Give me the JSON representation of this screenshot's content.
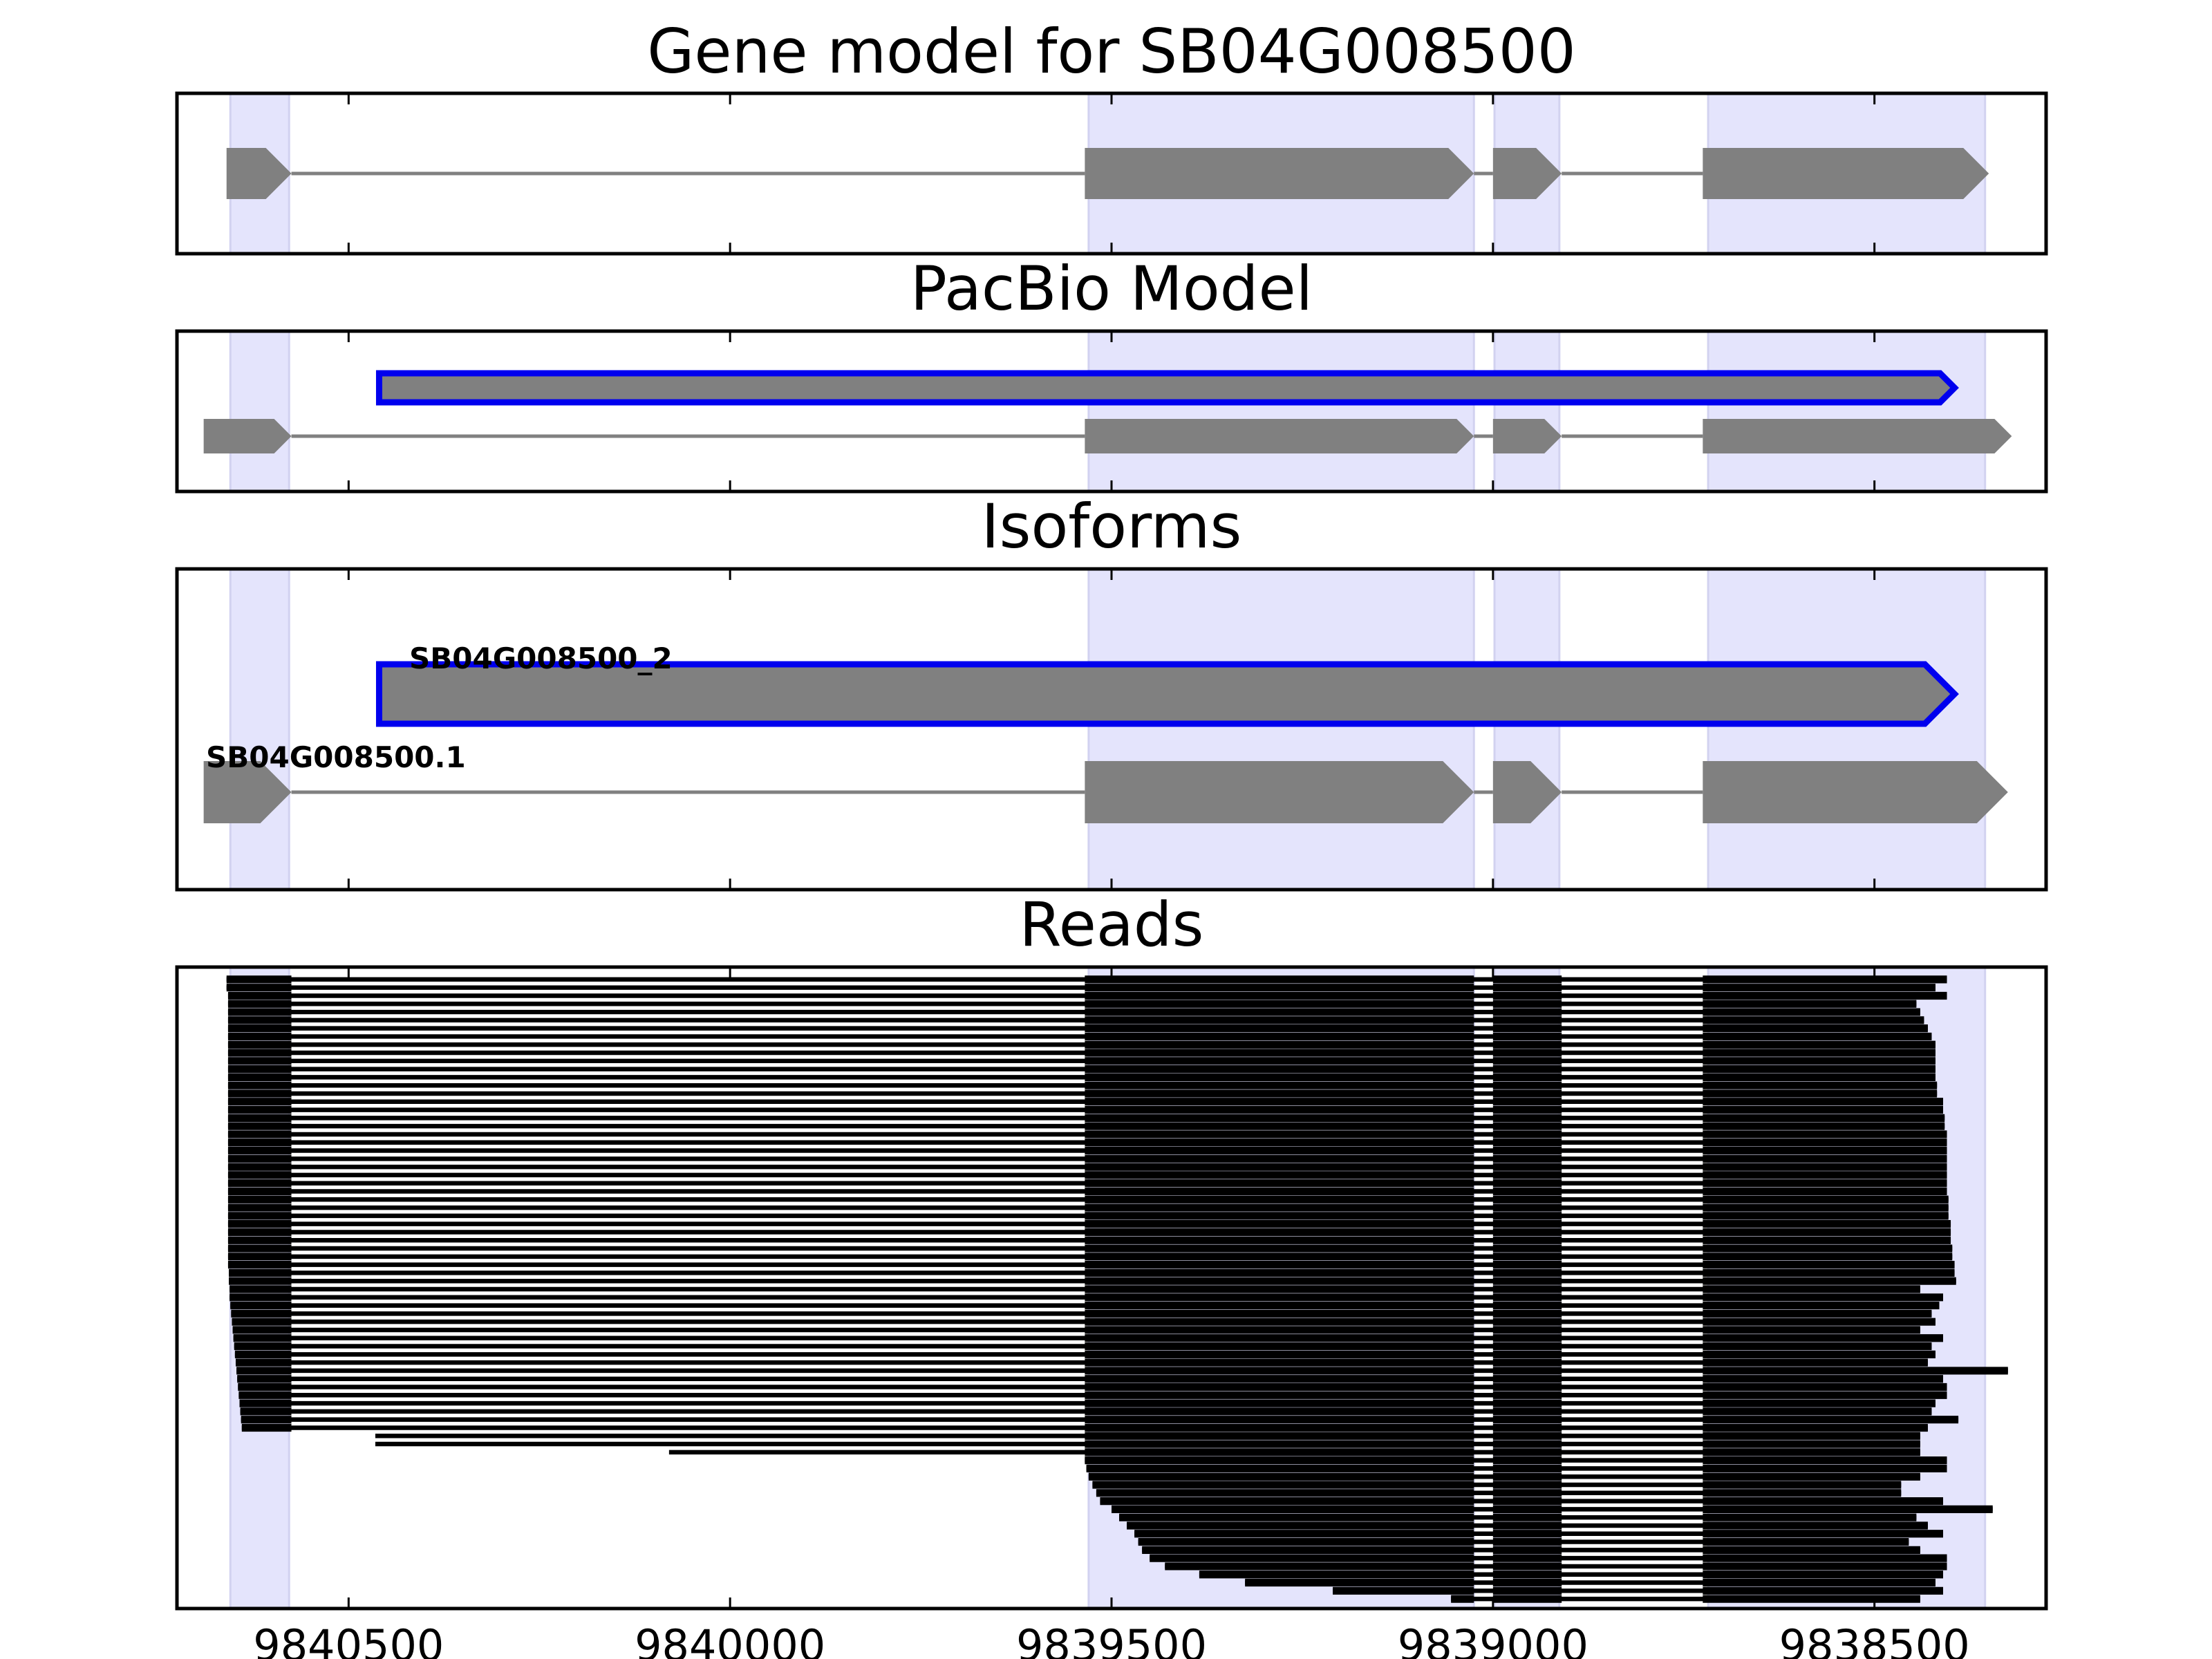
{
  "chart_data": {
    "type": "gene-track",
    "x_axis": {
      "xlim": [
        9840725,
        9838275
      ],
      "reversed": true,
      "ticks": [
        9840500,
        9840000,
        9839500,
        9839000,
        9838500
      ],
      "tick_labels": [
        "9840500",
        "9840000",
        "9839500",
        "9839000",
        "9838500"
      ]
    },
    "colors": {
      "exon_fill": "#808080",
      "intron_line": "#808080",
      "highlight_band": "#e4e4fc",
      "highlight_edge": "#d2d2f0",
      "selected_outline": "#0000ee",
      "read": "#000000",
      "frame": "#000000"
    },
    "exon_bands": [
      [
        9840655,
        9840578
      ],
      [
        9839530,
        9839025
      ],
      [
        9838998,
        9838913
      ],
      [
        9838718,
        9838355
      ]
    ],
    "panels": [
      {
        "key": "gene_model",
        "title": "Gene model for SB04G008500",
        "transcripts": [
          {
            "strand": "-",
            "exons": [
              [
                9840660,
                9840575
              ],
              [
                9839535,
                9839025
              ],
              [
                9839000,
                9838910
              ],
              [
                9838725,
                9838350
              ]
            ]
          }
        ]
      },
      {
        "key": "pacbio_model",
        "title": "PacBio Model",
        "transcripts": [
          {
            "strand": "-",
            "selected": true,
            "exons": [
              [
                9840460,
                9838395
              ]
            ]
          },
          {
            "strand": "-",
            "exons": [
              [
                9840690,
                9840575
              ],
              [
                9839535,
                9839025
              ],
              [
                9839000,
                9838910
              ],
              [
                9838725,
                9838320
              ]
            ]
          }
        ]
      },
      {
        "key": "isoforms",
        "title": "Isoforms",
        "transcripts": [
          {
            "name": "SB04G008500_2",
            "strand": "-",
            "selected": true,
            "exons": [
              [
                9840460,
                9838395
              ]
            ]
          },
          {
            "name": "SB04G008500.1",
            "strand": "-",
            "exons": [
              [
                9840690,
                9840575
              ],
              [
                9839535,
                9839025
              ],
              [
                9839000,
                9838910
              ],
              [
                9838725,
                9838325
              ]
            ]
          }
        ]
      },
      {
        "key": "reads",
        "title": "Reads",
        "read_exon_blocks": {
          "exon2": [
            9839535,
            9839025
          ],
          "exon3": [
            9839000,
            9838910
          ],
          "exon4_start": 9838725
        },
        "reads": [
          {
            "start": 9840660,
            "end": 9838405
          },
          {
            "start": 9840660,
            "end": 9838420
          },
          {
            "start": 9840658,
            "end": 9838405
          },
          {
            "start": 9840658,
            "end": 9838445
          },
          {
            "start": 9840658,
            "end": 9838440
          },
          {
            "start": 9840658,
            "end": 9838435
          },
          {
            "start": 9840658,
            "end": 9838430
          },
          {
            "start": 9840658,
            "end": 9838425
          },
          {
            "start": 9840658,
            "end": 9838420
          },
          {
            "start": 9840658,
            "end": 9838420
          },
          {
            "start": 9840658,
            "end": 9838420
          },
          {
            "start": 9840658,
            "end": 9838420
          },
          {
            "start": 9840658,
            "end": 9838420
          },
          {
            "start": 9840658,
            "end": 9838418
          },
          {
            "start": 9840658,
            "end": 9838418
          },
          {
            "start": 9840658,
            "end": 9838410
          },
          {
            "start": 9840658,
            "end": 9838410
          },
          {
            "start": 9840658,
            "end": 9838408
          },
          {
            "start": 9840658,
            "end": 9838408
          },
          {
            "start": 9840658,
            "end": 9838405
          },
          {
            "start": 9840658,
            "end": 9838405
          },
          {
            "start": 9840658,
            "end": 9838405
          },
          {
            "start": 9840658,
            "end": 9838405
          },
          {
            "start": 9840658,
            "end": 9838405
          },
          {
            "start": 9840658,
            "end": 9838405
          },
          {
            "start": 9840658,
            "end": 9838405
          },
          {
            "start": 9840658,
            "end": 9838405
          },
          {
            "start": 9840658,
            "end": 9838403
          },
          {
            "start": 9840658,
            "end": 9838403
          },
          {
            "start": 9840658,
            "end": 9838403
          },
          {
            "start": 9840658,
            "end": 9838400
          },
          {
            "start": 9840658,
            "end": 9838400
          },
          {
            "start": 9840658,
            "end": 9838400
          },
          {
            "start": 9840658,
            "end": 9838398
          },
          {
            "start": 9840658,
            "end": 9838398
          },
          {
            "start": 9840658,
            "end": 9838395
          },
          {
            "start": 9840657,
            "end": 9838395
          },
          {
            "start": 9840657,
            "end": 9838393
          },
          {
            "start": 9840656,
            "end": 9838440
          },
          {
            "start": 9840656,
            "end": 9838410
          },
          {
            "start": 9840655,
            "end": 9838415
          },
          {
            "start": 9840654,
            "end": 9838425
          },
          {
            "start": 9840653,
            "end": 9838420
          },
          {
            "start": 9840652,
            "end": 9838440
          },
          {
            "start": 9840651,
            "end": 9838410
          },
          {
            "start": 9840650,
            "end": 9838425
          },
          {
            "start": 9840649,
            "end": 9838420
          },
          {
            "start": 9840648,
            "end": 9838430
          },
          {
            "start": 9840647,
            "end": 9838325
          },
          {
            "start": 9840646,
            "end": 9838410
          },
          {
            "start": 9840645,
            "end": 9838405
          },
          {
            "start": 9840644,
            "end": 9838405
          },
          {
            "start": 9840643,
            "end": 9838420
          },
          {
            "start": 9840642,
            "end": 9838425
          },
          {
            "start": 9840641,
            "end": 9838390
          },
          {
            "start": 9840640,
            "end": 9838430
          },
          {
            "start": 9840465,
            "end": 9838440
          },
          {
            "start": 9840465,
            "end": 9838440
          },
          {
            "start": 9840080,
            "end": 9838440
          },
          {
            "start": 9839535,
            "end": 9838405
          },
          {
            "start": 9839533,
            "end": 9838405
          },
          {
            "start": 9839530,
            "end": 9838440
          },
          {
            "start": 9839525,
            "end": 9838465
          },
          {
            "start": 9839520,
            "end": 9838465
          },
          {
            "start": 9839515,
            "end": 9838410
          },
          {
            "start": 9839500,
            "end": 9838345
          },
          {
            "start": 9839490,
            "end": 9838445
          },
          {
            "start": 9839480,
            "end": 9838430
          },
          {
            "start": 9839470,
            "end": 9838410
          },
          {
            "start": 9839465,
            "end": 9838455
          },
          {
            "start": 9839460,
            "end": 9838440
          },
          {
            "start": 9839450,
            "end": 9838405
          },
          {
            "start": 9839430,
            "end": 9838405
          },
          {
            "start": 9839385,
            "end": 9838410
          },
          {
            "start": 9839325,
            "end": 9838420
          },
          {
            "start": 9839210,
            "end": 9838410
          },
          {
            "start": 9839055,
            "end": 9838440
          }
        ]
      }
    ]
  }
}
